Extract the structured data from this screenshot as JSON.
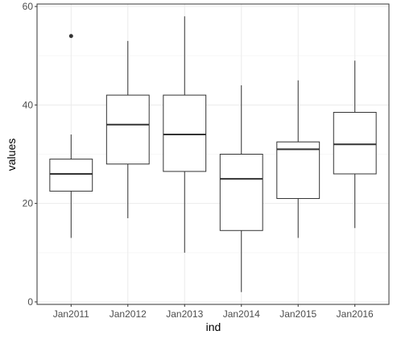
{
  "chart_data": {
    "type": "box",
    "xlabel": "ind",
    "ylabel": "values",
    "ylim": [
      -0.5,
      60.5
    ],
    "yticks": [
      0,
      20,
      40,
      60
    ],
    "grid": true,
    "legend": "none",
    "categories": [
      "Jan2011",
      "Jan2012",
      "Jan2013",
      "Jan2014",
      "Jan2015",
      "Jan2016"
    ],
    "boxes": [
      {
        "category": "Jan2011",
        "whisker_low": 13,
        "q1": 22.5,
        "median": 26,
        "q3": 29,
        "whisker_high": 34,
        "outliers": [
          54
        ]
      },
      {
        "category": "Jan2012",
        "whisker_low": 17,
        "q1": 28,
        "median": 36,
        "q3": 42,
        "whisker_high": 53,
        "outliers": []
      },
      {
        "category": "Jan2013",
        "whisker_low": 10,
        "q1": 26.5,
        "median": 34,
        "q3": 42,
        "whisker_high": 58,
        "outliers": []
      },
      {
        "category": "Jan2014",
        "whisker_low": 2,
        "q1": 14.5,
        "median": 25,
        "q3": 30,
        "whisker_high": 44,
        "outliers": []
      },
      {
        "category": "Jan2015",
        "whisker_low": 13,
        "q1": 21,
        "median": 31,
        "q3": 32.5,
        "whisker_high": 45,
        "outliers": []
      },
      {
        "category": "Jan2016",
        "whisker_low": 15,
        "q1": 26,
        "median": 32,
        "q3": 38.5,
        "whisker_high": 49,
        "outliers": []
      }
    ]
  },
  "colors": {
    "panel_border": "#333333",
    "grid_major": "#ebebeb",
    "grid_minor": "#f5f5f5",
    "box_stroke": "#333333",
    "box_fill": "#ffffff",
    "tick_text": "#4d4d4d",
    "title_text": "#000000"
  }
}
